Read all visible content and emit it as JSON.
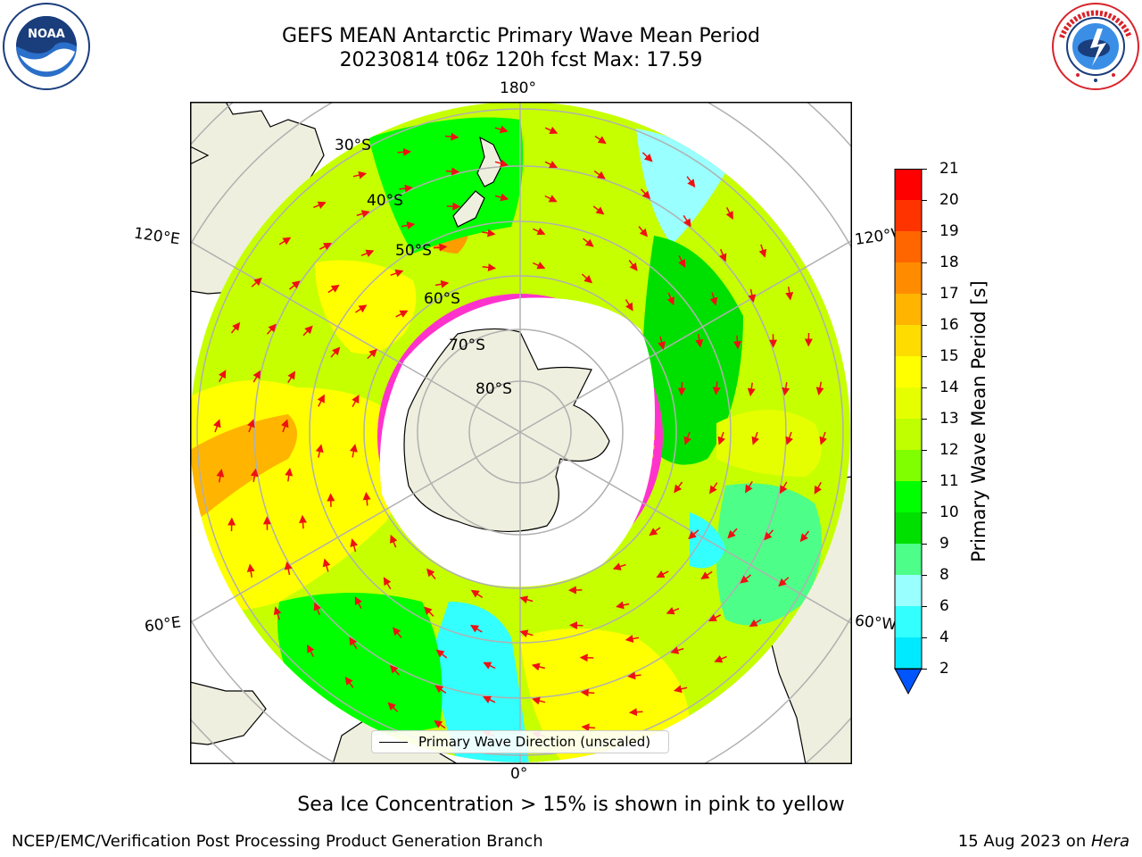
{
  "title_line1": "GEFS MEAN Antarctic Primary Wave Mean Period",
  "title_line2": "20230814 t06z 120h fcst   Max: 17.59",
  "longitude_labels": {
    "top": "180°",
    "bottom": "0°",
    "upper_left": "120°E",
    "upper_right": "120°W",
    "lower_left": "60°E",
    "lower_right": "60°W"
  },
  "latitude_labels": [
    "30°S",
    "40°S",
    "50°S",
    "60°S",
    "70°S",
    "80°S"
  ],
  "legend_label": "Primary Wave Direction (unscaled)",
  "colorbar": {
    "title": "Primary Wave Mean Period [s]",
    "ticks": [
      "21",
      "20",
      "19",
      "18",
      "17",
      "16",
      "15",
      "14",
      "13",
      "12",
      "11",
      "10",
      "9",
      "8",
      "6",
      "4",
      "2"
    ],
    "colors": [
      "#ff0000",
      "#ff3300",
      "#ff6600",
      "#ff8c00",
      "#ffb400",
      "#ffdc00",
      "#ffff00",
      "#e6ff00",
      "#bfff00",
      "#7fff00",
      "#00ff00",
      "#00e000",
      "#4dff88",
      "#99ffff",
      "#33ffff",
      "#00eaff",
      "#0099ff",
      "#0055ff"
    ]
  },
  "bottom_note": "Sea Ice Concentration > 15% is shown in pink to yellow",
  "footer_left": "NCEP/EMC/Verification Post Processing Product Generation Branch",
  "footer_right_date": "15 Aug 2023 on ",
  "footer_right_host": "Hera",
  "colors": {
    "land": "#efefdf",
    "ice_fringe": "#ff33cc",
    "arrows": "#ee1111",
    "grid": "#b0b0b0"
  }
}
